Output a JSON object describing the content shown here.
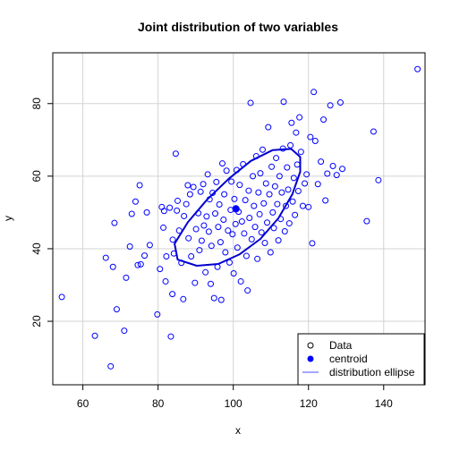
{
  "chart_data": {
    "type": "scatter",
    "title": "Joint distribution of two variables",
    "xlabel": "x",
    "ylabel": "y",
    "xlim": [
      52,
      151
    ],
    "ylim": [
      2.5,
      94
    ],
    "x_ticks": [
      60,
      80,
      100,
      120,
      140
    ],
    "y_ticks": [
      20,
      40,
      60,
      80
    ],
    "grid": true,
    "colors": {
      "points": "#0000ff",
      "centroid": "#0000ff",
      "ellipse": "#0000cd"
    },
    "centroid": {
      "x": 100.7,
      "y": 51.0
    },
    "ellipse": {
      "center": [
        100.7,
        51.0
      ],
      "points": [
        [
          85.2,
          37.0
        ],
        [
          90.3,
          35.3
        ],
        [
          96.0,
          35.8
        ],
        [
          101.6,
          38.4
        ],
        [
          107.2,
          42.7
        ],
        [
          112.0,
          48.4
        ],
        [
          115.7,
          55.0
        ],
        [
          117.8,
          61.2
        ],
        [
          117.8,
          65.3
        ],
        [
          115.4,
          67.5
        ],
        [
          110.5,
          67.2
        ],
        [
          104.7,
          64.2
        ],
        [
          98.8,
          59.3
        ],
        [
          93.0,
          53.5
        ],
        [
          87.9,
          47.3
        ],
        [
          84.4,
          41.4
        ]
      ]
    },
    "series": [
      {
        "name": "Data",
        "points": [
          [
            54.4,
            26.7
          ],
          [
            63.2,
            16.0
          ],
          [
            66.1,
            37.5
          ],
          [
            67.4,
            7.6
          ],
          [
            68.0,
            35.0
          ],
          [
            68.4,
            47.1
          ],
          [
            69.0,
            23.3
          ],
          [
            71.0,
            17.4
          ],
          [
            71.5,
            32.0
          ],
          [
            72.5,
            40.6
          ],
          [
            73.0,
            49.6
          ],
          [
            74.0,
            53.0
          ],
          [
            74.6,
            35.5
          ],
          [
            75.1,
            57.5
          ],
          [
            75.4,
            35.7
          ],
          [
            76.4,
            38.1
          ],
          [
            77.0,
            50.0
          ],
          [
            77.8,
            41.0
          ],
          [
            79.8,
            21.9
          ],
          [
            80.5,
            34.4
          ],
          [
            81.0,
            51.5
          ],
          [
            81.4,
            45.8
          ],
          [
            81.6,
            50.4
          ],
          [
            82.0,
            31.0
          ],
          [
            82.2,
            37.9
          ],
          [
            83.1,
            51.3
          ],
          [
            83.4,
            15.8
          ],
          [
            83.8,
            27.5
          ],
          [
            83.9,
            42.5
          ],
          [
            84.2,
            38.7
          ],
          [
            84.7,
            66.2
          ],
          [
            85.0,
            50.5
          ],
          [
            85.2,
            53.2
          ],
          [
            85.6,
            45.0
          ],
          [
            86.2,
            36.1
          ],
          [
            86.7,
            26.1
          ],
          [
            86.9,
            49.0
          ],
          [
            87.5,
            52.3
          ],
          [
            87.9,
            57.5
          ],
          [
            88.1,
            42.9
          ],
          [
            88.5,
            55.0
          ],
          [
            88.8,
            37.9
          ],
          [
            89.4,
            57.0
          ],
          [
            89.8,
            30.6
          ],
          [
            90.1,
            45.4
          ],
          [
            90.7,
            49.8
          ],
          [
            91.0,
            39.6
          ],
          [
            91.3,
            55.7
          ],
          [
            91.6,
            42.2
          ],
          [
            92.0,
            57.8
          ],
          [
            92.2,
            46.4
          ],
          [
            92.6,
            33.5
          ],
          [
            92.9,
            48.9
          ],
          [
            93.2,
            60.5
          ],
          [
            93.5,
            44.7
          ],
          [
            93.7,
            53.6
          ],
          [
            94.0,
            30.3
          ],
          [
            94.2,
            40.8
          ],
          [
            94.5,
            55.4
          ],
          [
            94.9,
            26.4
          ],
          [
            95.2,
            49.7
          ],
          [
            95.5,
            58.4
          ],
          [
            95.8,
            35.0
          ],
          [
            96.0,
            46.0
          ],
          [
            96.3,
            52.2
          ],
          [
            96.6,
            41.8
          ],
          [
            96.8,
            25.9
          ],
          [
            97.1,
            63.5
          ],
          [
            97.4,
            48.0
          ],
          [
            97.6,
            55.0
          ],
          [
            97.9,
            39.0
          ],
          [
            98.2,
            61.5
          ],
          [
            98.6,
            45.0
          ],
          [
            99.0,
            36.2
          ],
          [
            99.3,
            50.7
          ],
          [
            99.5,
            58.5
          ],
          [
            99.8,
            44.0
          ],
          [
            100.1,
            33.2
          ],
          [
            100.3,
            53.7
          ],
          [
            100.6,
            46.8
          ],
          [
            100.9,
            61.7
          ],
          [
            101.1,
            40.3
          ],
          [
            101.4,
            50.2
          ],
          [
            101.7,
            57.6
          ],
          [
            102.0,
            31.0
          ],
          [
            102.3,
            47.5
          ],
          [
            102.6,
            63.3
          ],
          [
            102.9,
            44.2
          ],
          [
            103.2,
            53.4
          ],
          [
            103.5,
            38.0
          ],
          [
            103.8,
            28.5
          ],
          [
            104.1,
            56.0
          ],
          [
            104.3,
            48.5
          ],
          [
            104.6,
            80.2
          ],
          [
            104.9,
            42.6
          ],
          [
            105.2,
            60.0
          ],
          [
            105.5,
            51.8
          ],
          [
            105.8,
            46.0
          ],
          [
            106.1,
            65.5
          ],
          [
            106.4,
            37.2
          ],
          [
            106.7,
            55.5
          ],
          [
            107.0,
            49.5
          ],
          [
            107.2,
            60.8
          ],
          [
            107.5,
            44.5
          ],
          [
            107.8,
            67.3
          ],
          [
            108.1,
            52.5
          ],
          [
            108.4,
            41.6
          ],
          [
            108.7,
            58.0
          ],
          [
            109.0,
            47.2
          ],
          [
            109.3,
            73.5
          ],
          [
            109.6,
            55.0
          ],
          [
            109.9,
            39.0
          ],
          [
            110.2,
            62.6
          ],
          [
            110.5,
            50.0
          ],
          [
            110.8,
            45.7
          ],
          [
            111.1,
            57.2
          ],
          [
            111.4,
            65.0
          ],
          [
            111.7,
            52.3
          ],
          [
            112.0,
            42.3
          ],
          [
            112.3,
            60.0
          ],
          [
            112.6,
            48.2
          ],
          [
            112.9,
            55.5
          ],
          [
            113.2,
            67.6
          ],
          [
            113.4,
            80.5
          ],
          [
            113.7,
            44.8
          ],
          [
            114.0,
            51.8
          ],
          [
            114.3,
            62.4
          ],
          [
            114.6,
            56.3
          ],
          [
            114.9,
            47.0
          ],
          [
            115.2,
            68.5
          ],
          [
            115.5,
            74.7
          ],
          [
            115.8,
            53.0
          ],
          [
            116.1,
            59.5
          ],
          [
            116.4,
            49.3
          ],
          [
            116.7,
            72.0
          ],
          [
            117.0,
            63.2
          ],
          [
            117.3,
            55.9
          ],
          [
            117.6,
            76.2
          ],
          [
            118.0,
            66.7
          ],
          [
            118.5,
            51.8
          ],
          [
            119.0,
            58.0
          ],
          [
            119.5,
            60.5
          ],
          [
            120.0,
            51.5
          ],
          [
            120.5,
            70.8
          ],
          [
            121.0,
            41.5
          ],
          [
            121.4,
            83.2
          ],
          [
            121.8,
            69.7
          ],
          [
            122.5,
            57.8
          ],
          [
            123.3,
            64.0
          ],
          [
            124.0,
            75.6
          ],
          [
            124.5,
            53.3
          ],
          [
            125.0,
            60.7
          ],
          [
            125.8,
            79.5
          ],
          [
            126.5,
            62.8
          ],
          [
            127.5,
            60.3
          ],
          [
            128.5,
            80.3
          ],
          [
            129.0,
            62.0
          ],
          [
            135.5,
            47.6
          ],
          [
            137.3,
            72.3
          ],
          [
            138.6,
            58.9
          ],
          [
            149.0,
            89.5
          ]
        ]
      }
    ],
    "legend": {
      "position": "bottom-right",
      "items": [
        {
          "label": "Data",
          "symbol": "open-circle"
        },
        {
          "label": "centroid",
          "symbol": "filled-circle"
        },
        {
          "label": "distribution ellipse",
          "symbol": "line"
        }
      ]
    }
  }
}
